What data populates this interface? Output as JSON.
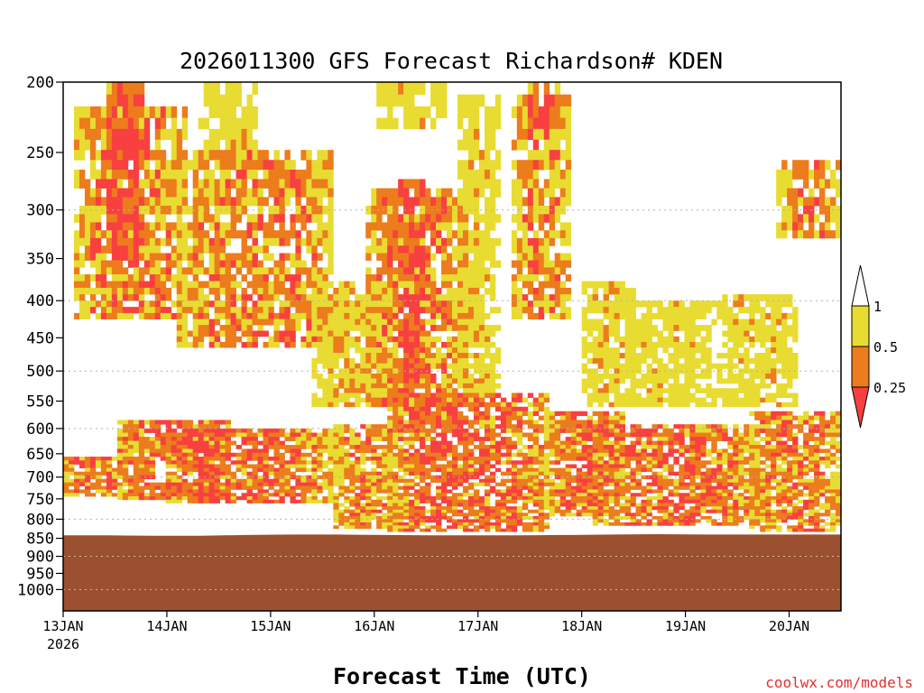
{
  "chart_data": {
    "type": "heatmap",
    "title": "2026011300 GFS Forecast Richardson# KDEN",
    "xlabel": "Forecast Time (UTC)",
    "ylabel": "",
    "credit": "coolwx.com/models",
    "x_range_days": [
      0,
      7.5
    ],
    "y_scale": "log-pressure",
    "y_range_hpa": [
      1070,
      200
    ],
    "y_ticks": [
      "200",
      "250",
      "300",
      "350",
      "400",
      "450",
      "500",
      "550",
      "600",
      "650",
      "700",
      "750",
      "800",
      "850",
      "900",
      "950",
      "1000"
    ],
    "x_ticks": [
      {
        "day": 0,
        "label": "13JAN",
        "sub": "2026"
      },
      {
        "day": 1,
        "label": "14JAN",
        "sub": ""
      },
      {
        "day": 2,
        "label": "15JAN",
        "sub": ""
      },
      {
        "day": 3,
        "label": "16JAN",
        "sub": ""
      },
      {
        "day": 4,
        "label": "17JAN",
        "sub": ""
      },
      {
        "day": 5,
        "label": "18JAN",
        "sub": ""
      },
      {
        "day": 6,
        "label": "19JAN",
        "sub": ""
      },
      {
        "day": 7,
        "label": "20JAN",
        "sub": ""
      }
    ],
    "gridlines_hpa": [
      300,
      400,
      500,
      600,
      700,
      800,
      900,
      1000
    ],
    "legend": {
      "placement": "right",
      "levels": [
        "1",
        "0.5",
        "0.25"
      ],
      "colors": [
        "#ffffff",
        "#e8dc32",
        "#ec7c1c",
        "#f84040"
      ]
    },
    "terrain_color": "#9b5030",
    "surface_pressure_hpa": [
      842,
      842,
      843,
      843,
      841,
      840,
      840,
      841,
      842,
      842,
      842,
      841,
      840,
      839,
      840,
      840,
      840,
      840
    ],
    "bands": [
      {
        "start": 0.5,
        "end": 1.6,
        "top": 585,
        "bottom": 750,
        "value": 0.2,
        "gap_top": 660,
        "gap_bottom": 715,
        "gap_start": 0.9,
        "gap_end": 1.3
      },
      {
        "start": 0.0,
        "end": 0.6,
        "top": 660,
        "bottom": 745,
        "value": 0.25
      },
      {
        "start": 1.0,
        "end": 2.6,
        "top": 600,
        "bottom": 760,
        "value": 0.22
      },
      {
        "start": 2.6,
        "end": 3.2,
        "top": 590,
        "bottom": 820,
        "value": 0.35
      },
      {
        "start": 3.1,
        "end": 4.7,
        "top": 540,
        "bottom": 835,
        "value": 0.2
      },
      {
        "start": 4.7,
        "end": 5.4,
        "top": 570,
        "bottom": 790,
        "value": 0.22
      },
      {
        "start": 5.1,
        "end": 6.7,
        "top": 595,
        "bottom": 815,
        "value": 0.24
      },
      {
        "start": 6.6,
        "end": 7.5,
        "top": 565,
        "bottom": 830,
        "value": 0.3
      },
      {
        "start": 0.1,
        "end": 1.2,
        "top": 220,
        "bottom": 420,
        "value": 0.3
      },
      {
        "start": 0.4,
        "end": 0.8,
        "top": 200,
        "bottom": 360,
        "value": 0.2
      },
      {
        "start": 1.1,
        "end": 2.6,
        "top": 250,
        "bottom": 460,
        "value": 0.3
      },
      {
        "start": 2.4,
        "end": 3.2,
        "top": 380,
        "bottom": 560,
        "value": 0.55
      },
      {
        "start": 2.9,
        "end": 3.9,
        "top": 280,
        "bottom": 560,
        "value": 0.3
      },
      {
        "start": 3.2,
        "end": 3.5,
        "top": 270,
        "bottom": 600,
        "value": 0.2
      },
      {
        "start": 3.8,
        "end": 4.2,
        "top": 210,
        "bottom": 540,
        "value": 0.6
      },
      {
        "start": 4.3,
        "end": 4.9,
        "top": 210,
        "bottom": 420,
        "value": 0.35
      },
      {
        "start": 4.5,
        "end": 4.8,
        "top": 200,
        "bottom": 230,
        "value": 0.3
      },
      {
        "start": 5.0,
        "end": 5.5,
        "top": 380,
        "bottom": 560,
        "value": 0.6
      },
      {
        "start": 5.4,
        "end": 6.3,
        "top": 400,
        "bottom": 560,
        "value": 0.65
      },
      {
        "start": 6.3,
        "end": 7.1,
        "top": 390,
        "bottom": 560,
        "value": 0.6
      },
      {
        "start": 6.9,
        "end": 7.5,
        "top": 260,
        "bottom": 330,
        "value": 0.35
      },
      {
        "start": 1.3,
        "end": 1.9,
        "top": 200,
        "bottom": 260,
        "value": 0.6
      },
      {
        "start": 3.0,
        "end": 3.7,
        "top": 200,
        "bottom": 230,
        "value": 0.65
      }
    ]
  }
}
